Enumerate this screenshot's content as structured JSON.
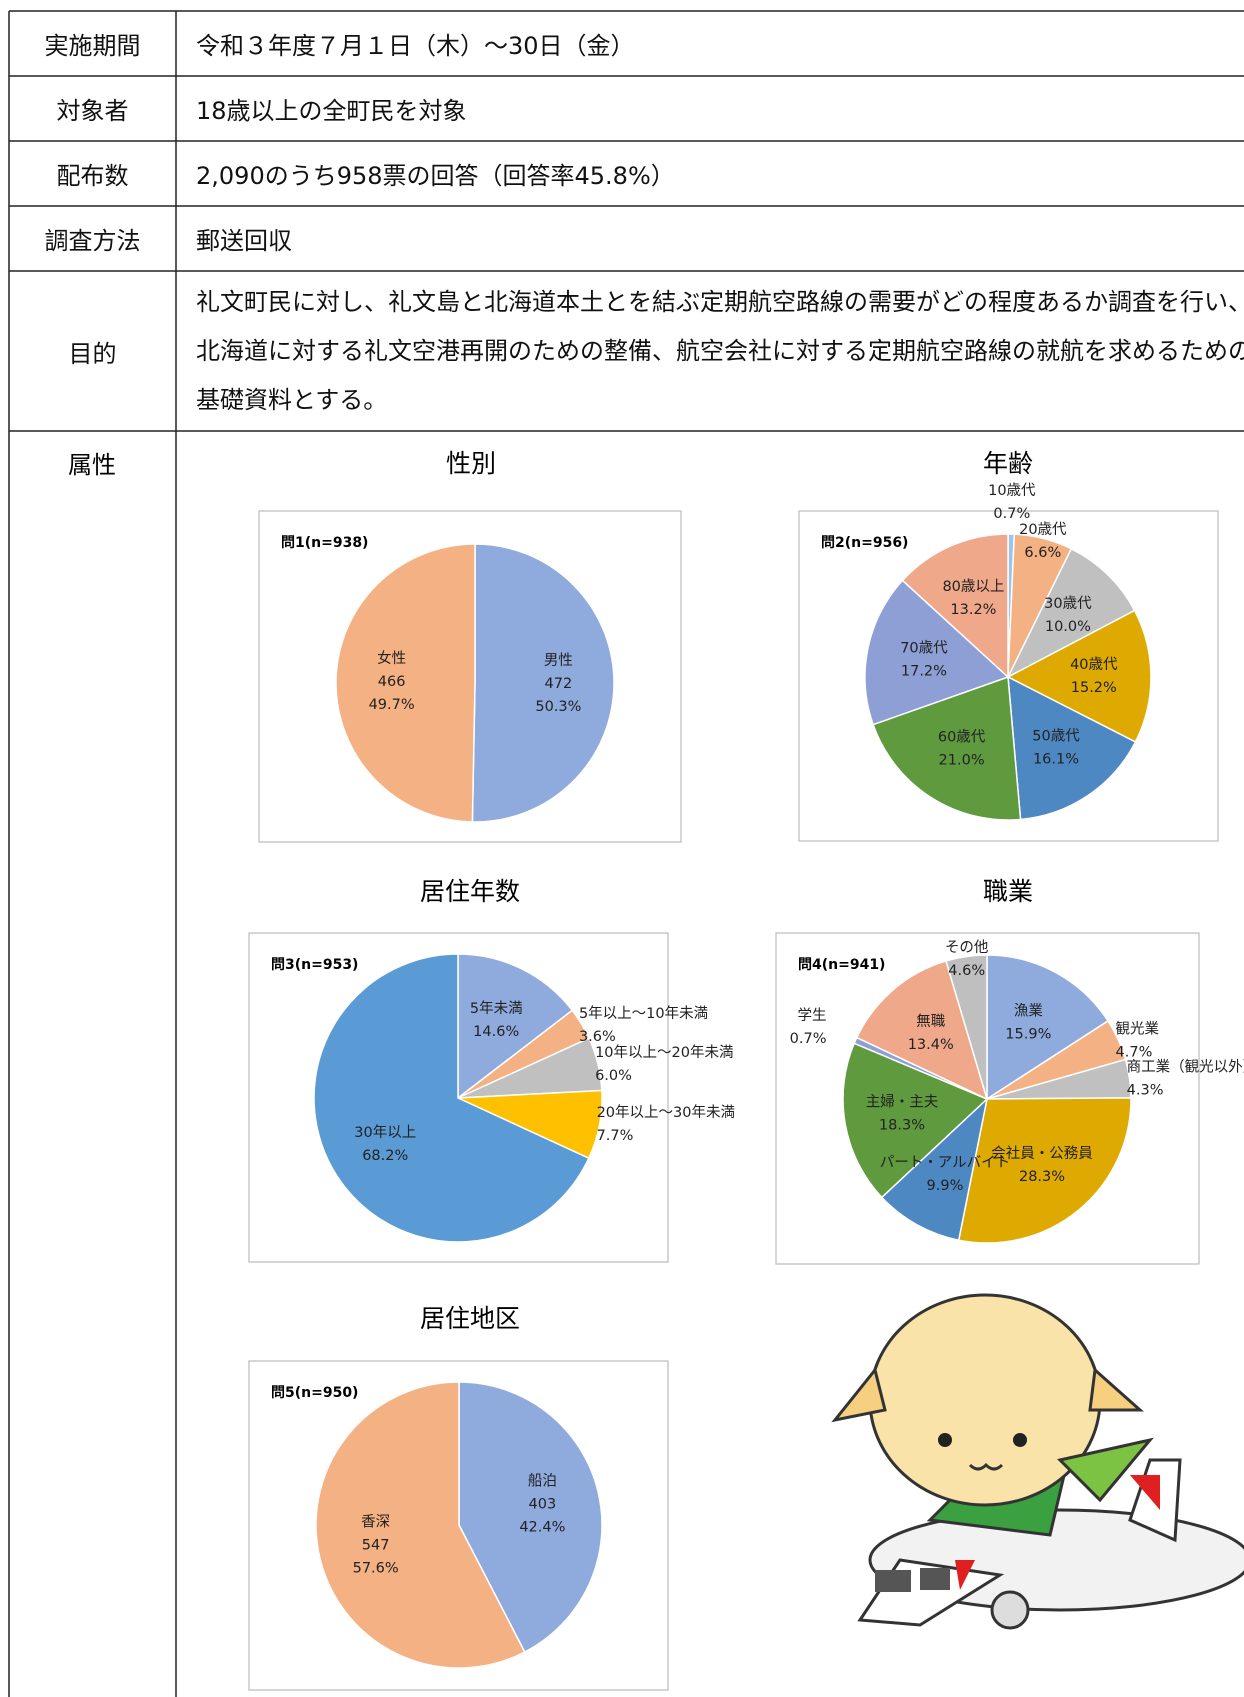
{
  "table": {
    "rows": [
      [
        "実施期間",
        "令和３年度７月１日（木）～30日（金）"
      ],
      [
        "対象者",
        "18歳以上の全町民を対象"
      ],
      [
        "配布数",
        "2,090のうち958票の回答（回答率45.8%）"
      ],
      [
        "調査方法",
        "郵送回収"
      ],
      [
        "目的",
        "礼文町民に対し、礼文島と北海道本土とを結ぶ定期航空路線の需要がどの程度あるか調査を行い、北海道に対する礼文空港再開のための整備、航空会社に対する定期航空路線の就航を求めるための基礎資料とする。"
      ]
    ],
    "attribute_label": "属性"
  },
  "chart_data": [
    {
      "type": "pie",
      "title": "性別",
      "note": "問1(n=938)",
      "categories": [
        "男性",
        "女性"
      ],
      "counts": [
        472,
        466
      ],
      "values": [
        50.3,
        49.7
      ],
      "value_labels": [
        "50.3%",
        "49.7%"
      ],
      "colors": [
        "#8faadc",
        "#f4b183"
      ]
    },
    {
      "type": "pie",
      "title": "年齢",
      "note": "問2(n=956)",
      "categories": [
        "10歳代",
        "20歳代",
        "30歳代",
        "40歳代",
        "50歳代",
        "60歳代",
        "70歳代",
        "80歳以上"
      ],
      "values": [
        0.7,
        6.6,
        10.0,
        15.2,
        16.1,
        21.0,
        17.2,
        13.2
      ],
      "value_labels": [
        "0.7%",
        "6.6%",
        "10.0%",
        "15.2%",
        "16.1%",
        "21.0%",
        "17.2%",
        "13.2%"
      ],
      "colors": [
        "#9dc3e6",
        "#f4b183",
        "#c0c0c0",
        "#dea900",
        "#4e88c2",
        "#5f9a3f",
        "#8e9fd6",
        "#f0a88a"
      ]
    },
    {
      "type": "pie",
      "title": "居住年数",
      "note": "問3(n=953)",
      "categories": [
        "5年未満",
        "5年以上～10年未満",
        "10年以上～20年未満",
        "20年以上～30年未満",
        "30年以上"
      ],
      "values": [
        14.6,
        3.6,
        6.0,
        7.7,
        68.2
      ],
      "value_labels": [
        "14.6%",
        "3.6%",
        "6.0%",
        "7.7%",
        "68.2%"
      ],
      "colors": [
        "#8faadc",
        "#f4b183",
        "#c0c0c0",
        "#ffc000",
        "#5b9bd5"
      ]
    },
    {
      "type": "pie",
      "title": "職業",
      "note": "問4(n=941)",
      "categories": [
        "漁業",
        "観光業",
        "商工業（観光以外）",
        "会社員・公務員",
        "パート・アルバイト",
        "主婦・主夫",
        "学生",
        "無職",
        "その他"
      ],
      "values": [
        15.9,
        4.7,
        4.3,
        28.3,
        9.9,
        18.3,
        0.7,
        13.4,
        4.6
      ],
      "value_labels": [
        "15.9%",
        "4.7%",
        "4.3%",
        "28.3%",
        "9.9%",
        "18.3%",
        "0.7%",
        "13.4%",
        "4.6%"
      ],
      "colors": [
        "#8faadc",
        "#f4b183",
        "#c0c0c0",
        "#dea900",
        "#4e88c2",
        "#5f9a3f",
        "#8e9fd6",
        "#f0a88a",
        "#bfbfbf"
      ]
    },
    {
      "type": "pie",
      "title": "居住地区",
      "note": "問5(n=950)",
      "categories": [
        "船泊",
        "香深"
      ],
      "counts": [
        403,
        547
      ],
      "values": [
        42.4,
        57.6
      ],
      "value_labels": [
        "42.4%",
        "57.6%"
      ],
      "colors": [
        "#8faadc",
        "#f4b183"
      ]
    }
  ]
}
